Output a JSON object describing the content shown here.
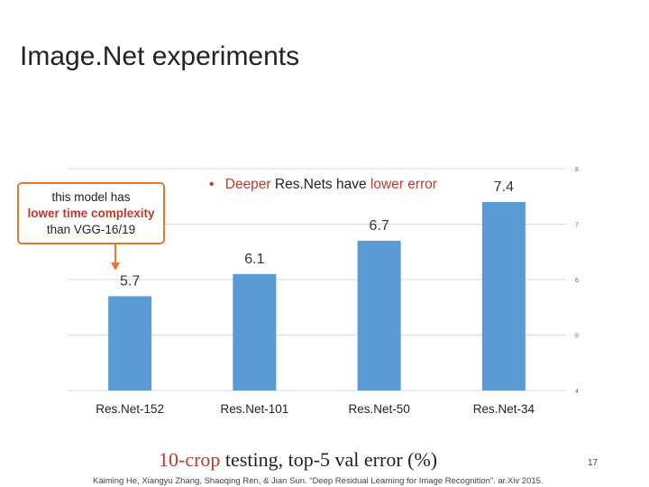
{
  "slide": {
    "title": "Image.Net experiments",
    "page_number": "17",
    "citation": "Kaiming He, Xiangyu Zhang, Shaoqing Ren, & Jian Sun. “Deep Residual Learning for Image Recognition”. ar.Xiv 2015."
  },
  "callout": {
    "line1": "this model has",
    "line2": "lower time complexity",
    "line3": "than VGG-16/19"
  },
  "caption": {
    "part1": "10-crop",
    "part2": " testing, top-5 val error (%)"
  },
  "chart_data": {
    "type": "bar",
    "categories": [
      "Res.Net-152",
      "Res.Net-101",
      "Res.Net-50",
      "Res.Net-34"
    ],
    "values": [
      5.7,
      6.1,
      6.7,
      7.4
    ],
    "value_labels": [
      "5.7",
      "6.1",
      "6.7",
      "7.4"
    ],
    "ylim": [
      4,
      8
    ],
    "yticks": [
      4,
      5,
      6,
      7,
      8
    ],
    "ytick_labels": [
      "4",
      "5",
      "6",
      "7",
      "8"
    ],
    "y_axis_side": "right",
    "grid": true,
    "bar_color": "#5b9bd5",
    "annotation": {
      "bullet": "•",
      "part1": "Deeper ",
      "part2": "Res.Nets have ",
      "part3": "lower error"
    }
  },
  "colors": {
    "bar": "#5b9bd5",
    "highlight_red": "#c0392b",
    "callout_border": "#e8772e",
    "grid": "#d9d9d9"
  }
}
